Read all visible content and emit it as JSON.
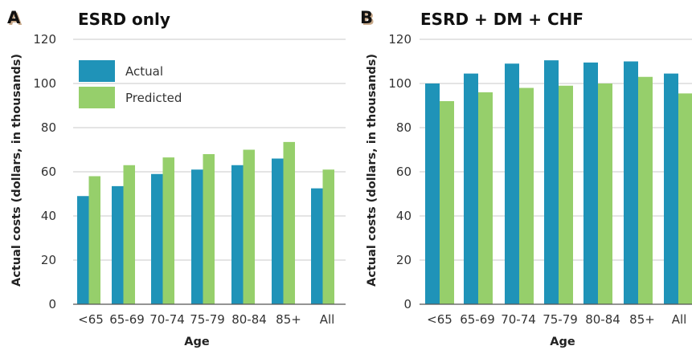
{
  "colors": {
    "actual": "#1f93b8",
    "predicted": "#96cf6b",
    "grid": "#c9c9c9",
    "axis": "#555555",
    "letter_shadow": "#c8a98a"
  },
  "chart_data": [
    {
      "type": "bar",
      "panel_letter": "A",
      "title": "ESRD only",
      "xlabel": "Age",
      "ylabel": "Actual costs (dollars, in thousands)",
      "ylim": [
        0,
        120
      ],
      "yticks": [
        "0",
        "20",
        "40",
        "60",
        "80",
        "100",
        "120"
      ],
      "grid": true,
      "legend_position": "top-left",
      "categories": [
        "<65",
        "65-69",
        "70-74",
        "75-79",
        "80-84",
        "85+",
        "All"
      ],
      "series": [
        {
          "name": "Actual",
          "values": [
            49,
            53.5,
            59,
            61,
            63,
            66,
            52.5
          ]
        },
        {
          "name": "Predicted",
          "values": [
            58,
            63,
            66.5,
            68,
            70,
            73.5,
            61
          ]
        }
      ]
    },
    {
      "type": "bar",
      "panel_letter": "B",
      "title": "ESRD + DM + CHF",
      "xlabel": "Age",
      "ylabel": "Actual costs (dollars, in thousands)",
      "ylim": [
        0,
        120
      ],
      "yticks": [
        "0",
        "20",
        "40",
        "60",
        "80",
        "100",
        "120"
      ],
      "grid": true,
      "categories": [
        "<65",
        "65-69",
        "70-74",
        "75-79",
        "80-84",
        "85+",
        "All"
      ],
      "series": [
        {
          "name": "Actual",
          "values": [
            100,
            104.5,
            109,
            110.5,
            109.5,
            110,
            104.5
          ]
        },
        {
          "name": "Predicted",
          "values": [
            92,
            96,
            98,
            99,
            100,
            103,
            95.5
          ]
        }
      ]
    }
  ]
}
